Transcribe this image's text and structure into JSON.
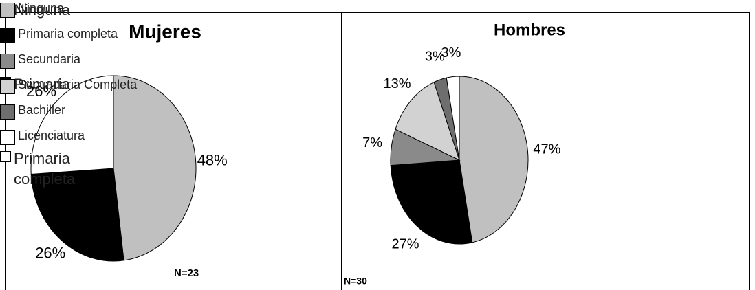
{
  "chart_data": [
    {
      "type": "pie",
      "title": "Mujeres",
      "categories": [
        "Ninguna",
        "Primaria",
        "Primaria completa"
      ],
      "values": [
        48,
        26,
        26
      ],
      "value_labels": [
        "48%",
        "26%",
        "26%"
      ],
      "colors": [
        "#c0c0c0",
        "#000000",
        "#ffffff"
      ],
      "annotation": "N=23"
    },
    {
      "type": "pie",
      "title": "Hombres",
      "categories": [
        "Ninguna",
        "Primaria completa",
        "Secundaria",
        "Secundaria Completa",
        "Bachiller",
        "Licenciatura"
      ],
      "values": [
        47,
        27,
        7,
        13,
        3,
        3
      ],
      "value_labels": [
        "47%",
        "27%",
        "7%",
        "13%",
        "3%",
        "3%"
      ],
      "colors": [
        "#c0c0c0",
        "#000000",
        "#8a8a8a",
        "#d2d2d2",
        "#6e6e6e",
        "#ffffff"
      ],
      "annotation": "N=30"
    }
  ]
}
